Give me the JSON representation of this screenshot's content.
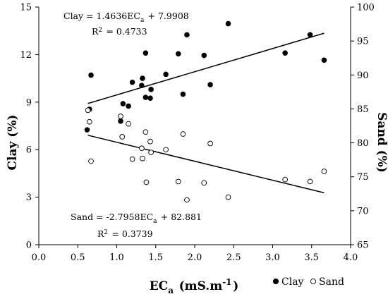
{
  "chart_data": {
    "type": "scatter",
    "xlabel": "ECa (mS.m-1)",
    "ylabel": "Clay (%)",
    "y2label": "Sand (%)",
    "xlim": [
      0.0,
      4.0
    ],
    "ylim": [
      0,
      15
    ],
    "y2lim": [
      65,
      100
    ],
    "x_ticks": [
      "0.0",
      "0.5",
      "1.0",
      "1.5",
      "2.0",
      "2.5",
      "3.0",
      "3.5",
      "4.0"
    ],
    "y_ticks": [
      "0",
      "3",
      "6",
      "9",
      "12",
      "15"
    ],
    "y2_ticks": [
      "65",
      "70",
      "75",
      "80",
      "85",
      "90",
      "95",
      "100"
    ],
    "grid": false,
    "legend": {
      "position": "bottom-right",
      "entries": [
        "Clay",
        "Sand"
      ]
    },
    "series": [
      {
        "name": "Clay",
        "axis": "left",
        "marker": "filled-circle",
        "points": [
          [
            0.62,
            7.25
          ],
          [
            0.65,
            8.55
          ],
          [
            0.67,
            10.7
          ],
          [
            1.05,
            7.8
          ],
          [
            1.08,
            8.9
          ],
          [
            1.15,
            8.75
          ],
          [
            1.2,
            10.25
          ],
          [
            1.32,
            10.05
          ],
          [
            1.33,
            10.5
          ],
          [
            1.37,
            9.3
          ],
          [
            1.37,
            12.1
          ],
          [
            1.43,
            9.25
          ],
          [
            1.44,
            9.8
          ],
          [
            1.63,
            10.75
          ],
          [
            1.79,
            12.05
          ],
          [
            1.85,
            9.5
          ],
          [
            1.9,
            13.25
          ],
          [
            2.12,
            11.95
          ],
          [
            2.2,
            10.1
          ],
          [
            2.43,
            13.95
          ],
          [
            3.16,
            12.1
          ],
          [
            3.48,
            13.25
          ],
          [
            3.66,
            11.65
          ]
        ]
      },
      {
        "name": "Sand",
        "axis": "right",
        "marker": "open-circle",
        "points": [
          [
            0.63,
            84.8
          ],
          [
            0.65,
            83.1
          ],
          [
            0.67,
            77.3
          ],
          [
            1.05,
            83.9
          ],
          [
            1.07,
            80.9
          ],
          [
            1.15,
            82.8
          ],
          [
            1.2,
            77.6
          ],
          [
            1.32,
            79.2
          ],
          [
            1.33,
            77.7
          ],
          [
            1.37,
            81.6
          ],
          [
            1.38,
            74.2
          ],
          [
            1.43,
            80.2
          ],
          [
            1.44,
            78.6
          ],
          [
            1.63,
            79.0
          ],
          [
            1.79,
            74.3
          ],
          [
            1.85,
            81.3
          ],
          [
            1.9,
            71.6
          ],
          [
            2.12,
            74.1
          ],
          [
            2.2,
            79.9
          ],
          [
            2.43,
            72.0
          ],
          [
            3.16,
            74.6
          ],
          [
            3.48,
            74.3
          ],
          [
            3.66,
            75.8
          ]
        ]
      }
    ],
    "fits": [
      {
        "series": "Clay",
        "axis": "left",
        "equation": "Clay = 1.4636ECa + 7.9908",
        "r2": "R2 = 0.4733",
        "slope": 1.4636,
        "intercept": 7.9908,
        "x_range": [
          0.63,
          3.66
        ]
      },
      {
        "series": "Sand",
        "axis": "right",
        "equation": "Sand = -2.7958ECa + 82.881",
        "r2": "R2 = 0.3739",
        "slope": -2.7958,
        "intercept": 82.881,
        "x_range": [
          0.63,
          3.66
        ]
      }
    ]
  }
}
